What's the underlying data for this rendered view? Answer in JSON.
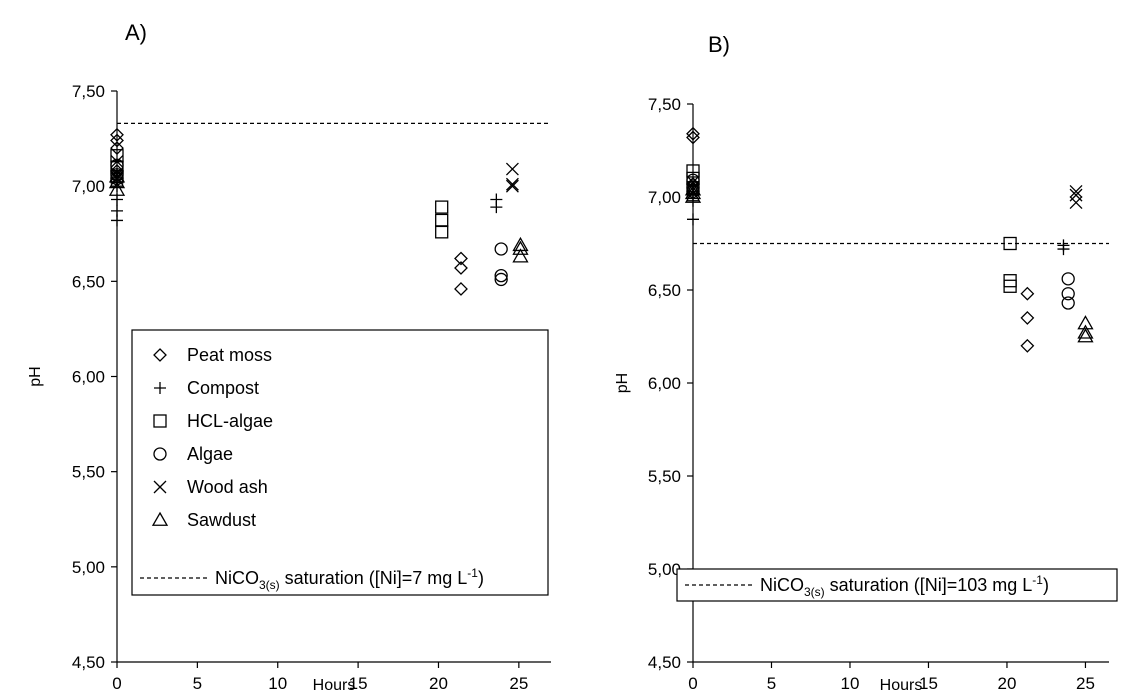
{
  "chart_data": [
    {
      "type": "scatter",
      "panel_label": "A)",
      "xlabel": "Hours",
      "ylabel": "pH",
      "xlim": [
        0,
        27
      ],
      "ylim": [
        4.5,
        7.5
      ],
      "xticks": [
        "0",
        "5",
        "10",
        "15",
        "20",
        "25"
      ],
      "yticks": [
        "4,50",
        "5,00",
        "5,50",
        "6,00",
        "6,50",
        "7,00",
        "7,50"
      ],
      "grid": false,
      "legend_position": "bottom-left",
      "series": [
        {
          "name": "Peat moss",
          "marker": "diamond",
          "points": [
            [
              0,
              7.27
            ],
            [
              0,
              7.24
            ],
            [
              0,
              7.2
            ],
            [
              0,
              7.08
            ],
            [
              21.4,
              6.62
            ],
            [
              21.4,
              6.57
            ],
            [
              21.4,
              6.46
            ]
          ]
        },
        {
          "name": "Compost",
          "marker": "plus",
          "points": [
            [
              0,
              7.0
            ],
            [
              0,
              6.93
            ],
            [
              0,
              6.87
            ],
            [
              0,
              6.82
            ],
            [
              23.6,
              6.93
            ],
            [
              23.6,
              6.89
            ]
          ]
        },
        {
          "name": "HCL-algae",
          "marker": "square",
          "points": [
            [
              0,
              7.16
            ],
            [
              0,
              7.1
            ],
            [
              0,
              7.05
            ],
            [
              20.2,
              6.89
            ],
            [
              20.2,
              6.82
            ],
            [
              20.2,
              6.76
            ]
          ]
        },
        {
          "name": "Algae",
          "marker": "circle",
          "points": [
            [
              0,
              7.11
            ],
            [
              0,
              7.06
            ],
            [
              0,
              7.04
            ],
            [
              23.9,
              6.67
            ],
            [
              23.9,
              6.53
            ],
            [
              23.9,
              6.51
            ]
          ]
        },
        {
          "name": "Wood ash",
          "marker": "x",
          "points": [
            [
              0,
              7.13
            ],
            [
              0,
              7.06
            ],
            [
              0,
              7.04
            ],
            [
              24.6,
              7.09
            ],
            [
              24.6,
              7.01
            ],
            [
              24.6,
              7.0
            ]
          ]
        },
        {
          "name": "Sawdust",
          "marker": "triangle",
          "points": [
            [
              0,
              7.05
            ],
            [
              0,
              7.02
            ],
            [
              0,
              6.98
            ],
            [
              25.1,
              6.69
            ],
            [
              25.1,
              6.67
            ],
            [
              25.1,
              6.63
            ]
          ]
        }
      ],
      "reference_line": {
        "y": 7.33,
        "label_prefix": "NiCO",
        "label_sub": "3(s)",
        "label_mid": " saturation ([Ni]=7 mg L",
        "label_sup": "-1",
        "label_suffix": ")"
      }
    },
    {
      "type": "scatter",
      "panel_label": "B)",
      "xlabel": "Hours",
      "ylabel": "pH",
      "xlim": [
        0,
        26.5
      ],
      "ylim": [
        4.5,
        7.5
      ],
      "xticks": [
        "0",
        "5",
        "10",
        "15",
        "20",
        "25"
      ],
      "yticks": [
        "4,50",
        "5,00",
        "5,50",
        "6,00",
        "6,50",
        "7,00",
        "7,50"
      ],
      "grid": false,
      "legend_position": "bottom",
      "series": [
        {
          "name": "Peat moss",
          "marker": "diamond",
          "points": [
            [
              0,
              7.34
            ],
            [
              0,
              7.32
            ],
            [
              0,
              7.07
            ],
            [
              21.3,
              6.48
            ],
            [
              21.3,
              6.35
            ],
            [
              21.3,
              6.2
            ]
          ]
        },
        {
          "name": "Compost",
          "marker": "plus",
          "points": [
            [
              0,
              7.01
            ],
            [
              0,
              6.98
            ],
            [
              0,
              6.88
            ],
            [
              23.6,
              6.74
            ],
            [
              23.6,
              6.72
            ]
          ]
        },
        {
          "name": "HCL-algae",
          "marker": "square",
          "points": [
            [
              0,
              7.14
            ],
            [
              0,
              7.1
            ],
            [
              0,
              7.05
            ],
            [
              20.2,
              6.75
            ],
            [
              20.2,
              6.55
            ],
            [
              20.2,
              6.52
            ]
          ]
        },
        {
          "name": "Algae",
          "marker": "circle",
          "points": [
            [
              0,
              7.09
            ],
            [
              0,
              7.05
            ],
            [
              0,
              7.03
            ],
            [
              23.9,
              6.56
            ],
            [
              23.9,
              6.48
            ],
            [
              23.9,
              6.43
            ]
          ]
        },
        {
          "name": "Wood ash",
          "marker": "x",
          "points": [
            [
              0,
              7.08
            ],
            [
              0,
              7.05
            ],
            [
              0,
              7.02
            ],
            [
              24.4,
              7.03
            ],
            [
              24.4,
              7.01
            ],
            [
              24.4,
              6.97
            ]
          ]
        },
        {
          "name": "Sawdust",
          "marker": "triangle",
          "points": [
            [
              0,
              7.04
            ],
            [
              0,
              7.02
            ],
            [
              0,
              7.0
            ],
            [
              25.0,
              6.32
            ],
            [
              25.0,
              6.27
            ],
            [
              25.0,
              6.25
            ]
          ]
        }
      ],
      "reference_line": {
        "y": 6.75,
        "label_prefix": "NiCO",
        "label_sub": "3(s)",
        "label_mid": " saturation ([Ni]=103 mg L",
        "label_sup": "-1",
        "label_suffix": ")"
      }
    }
  ]
}
